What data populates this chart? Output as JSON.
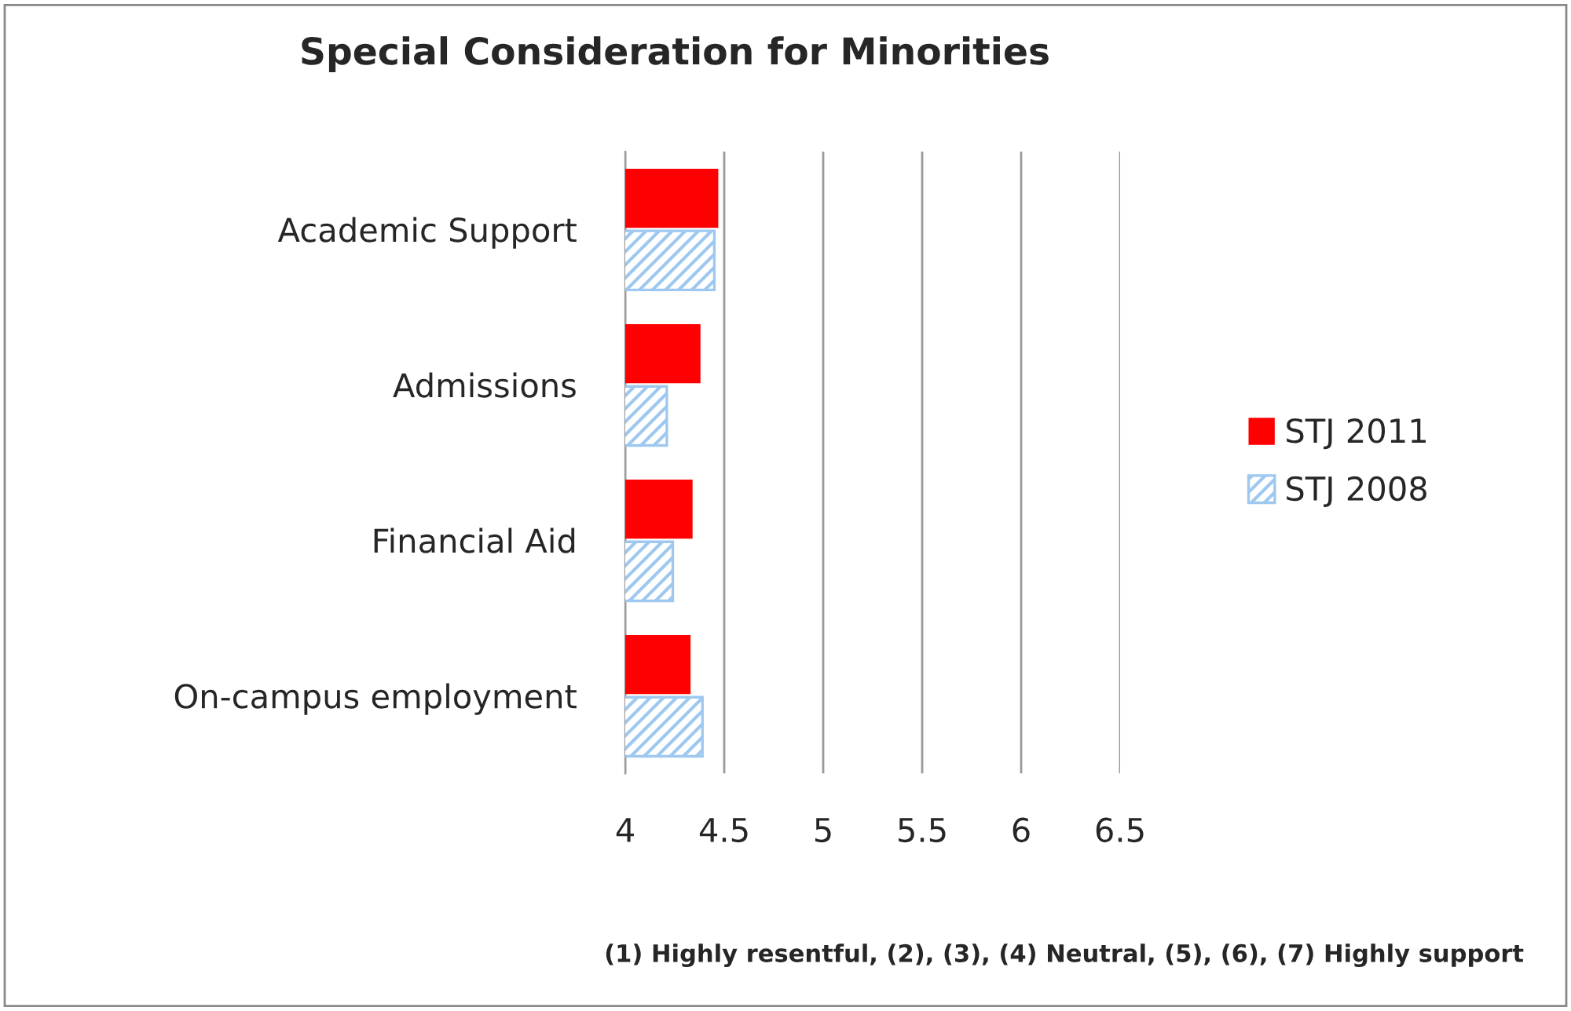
{
  "chart_data": {
    "type": "bar",
    "orientation": "horizontal",
    "title": "Special Consideration for Minorities",
    "categories": [
      "Academic Support",
      "Admissions",
      "Financial Aid",
      "On-campus employment"
    ],
    "series": [
      {
        "name": "STJ 2011",
        "color": "#ff0000",
        "values": [
          4.47,
          4.38,
          4.34,
          4.33
        ]
      },
      {
        "name": "STJ 2008",
        "color": "#9ec8f0",
        "values": [
          4.45,
          4.21,
          4.24,
          4.39
        ]
      }
    ],
    "xlim": [
      4,
      6.5
    ],
    "xticks": [
      4,
      4.5,
      5,
      5.5,
      6,
      6.5
    ],
    "grid": "x",
    "legend": "right",
    "annotations": [
      "(1) Highly resentful, (2), (3), (4) Neutral, (5), (6), (7) Highly support"
    ]
  }
}
